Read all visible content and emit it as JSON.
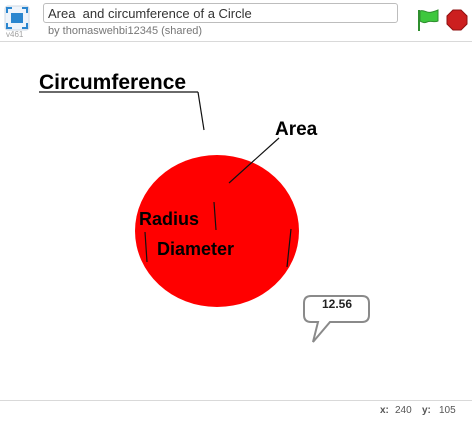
{
  "header": {
    "version": "v461",
    "project_title": "Area  and circumference of a Circle",
    "byline": "by thomaswehbi12345 (shared)"
  },
  "stage": {
    "labels": {
      "circumference": "Circumference",
      "area": "Area",
      "radius": "Radius",
      "diameter": "Diameter"
    },
    "speech_bubble": "12.56",
    "circle_color": "#ff0000"
  },
  "footer": {
    "x_label": "x:",
    "x_value": "240",
    "y_label": "y:",
    "y_value": "105"
  },
  "colors": {
    "flag_green": "#3ec73e",
    "stop_red": "#cc1f1f",
    "fullscreen_blue": "#2a86cf"
  }
}
